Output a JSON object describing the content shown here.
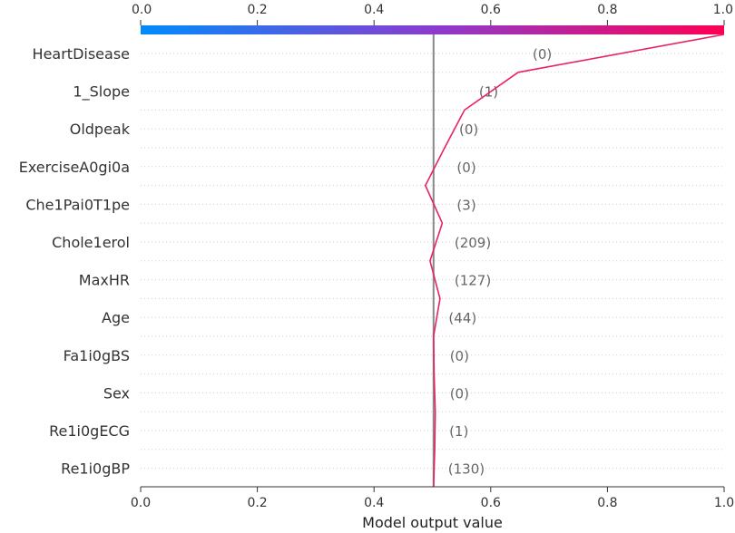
{
  "chart_data": {
    "type": "line",
    "xlabel": "Model output value",
    "xlim": [
      0.0,
      1.0
    ],
    "ticks": [
      "0.0",
      "0.2",
      "0.4",
      "0.6",
      "0.8",
      "1.0"
    ],
    "tick_values": [
      0.0,
      0.2,
      0.4,
      0.6,
      0.8,
      1.0
    ],
    "base_value": 0.502,
    "top_output": 1.0,
    "colorbar": [
      "#008bfb",
      "#ff0052"
    ],
    "grid": "dotted horizontal",
    "features": [
      {
        "name": "HeartDisease",
        "value": "(0)",
        "output": 0.647
      },
      {
        "name": "1_Slope",
        "value": "(1)",
        "output": 0.555
      },
      {
        "name": "Oldpeak",
        "value": "(0)",
        "output": 0.521
      },
      {
        "name": "ExerciseA0gi0a",
        "value": "(0)",
        "output": 0.488
      },
      {
        "name": "Che1Pai0T1pe",
        "value": "(3)",
        "output": 0.517
      },
      {
        "name": "Chole1erol",
        "value": "(209)",
        "output": 0.496
      },
      {
        "name": "MaxHR",
        "value": "(127)",
        "output": 0.513
      },
      {
        "name": "Age",
        "value": "(44)",
        "output": 0.502
      },
      {
        "name": "Fa1i0gBS",
        "value": "(0)",
        "output": 0.503
      },
      {
        "name": "Sex",
        "value": "(0)",
        "output": 0.505
      },
      {
        "name": "Re1i0gECG",
        "value": "(1)",
        "output": 0.504
      },
      {
        "name": "Re1i0gBP",
        "value": "(130)",
        "output": 0.502
      }
    ]
  }
}
